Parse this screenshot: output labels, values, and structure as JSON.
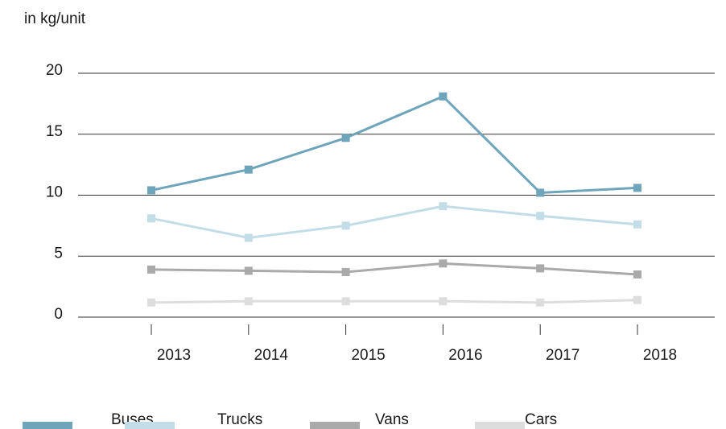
{
  "chart_data": {
    "type": "line",
    "y_label": "in kg/unit",
    "categories": [
      "2013",
      "2014",
      "2015",
      "2016",
      "2017",
      "2018"
    ],
    "series": [
      {
        "name": "Buses",
        "color": "#6fa5ba",
        "values": [
          10.4,
          12.1,
          14.7,
          18.1,
          10.2,
          10.6
        ]
      },
      {
        "name": "Trucks",
        "color": "#c3dde8",
        "values": [
          8.1,
          6.5,
          7.5,
          9.1,
          8.3,
          7.6
        ]
      },
      {
        "name": "Vans",
        "color": "#aaaaaa",
        "values": [
          3.9,
          3.8,
          3.7,
          4.4,
          4.0,
          3.5
        ]
      },
      {
        "name": "Cars",
        "color": "#dddddd",
        "values": [
          1.2,
          1.3,
          1.3,
          1.3,
          1.2,
          1.4
        ]
      }
    ],
    "ylim": [
      0,
      20
    ],
    "yticks": [
      0,
      5,
      10,
      15,
      20
    ],
    "grid": true,
    "legend": "bottom"
  }
}
